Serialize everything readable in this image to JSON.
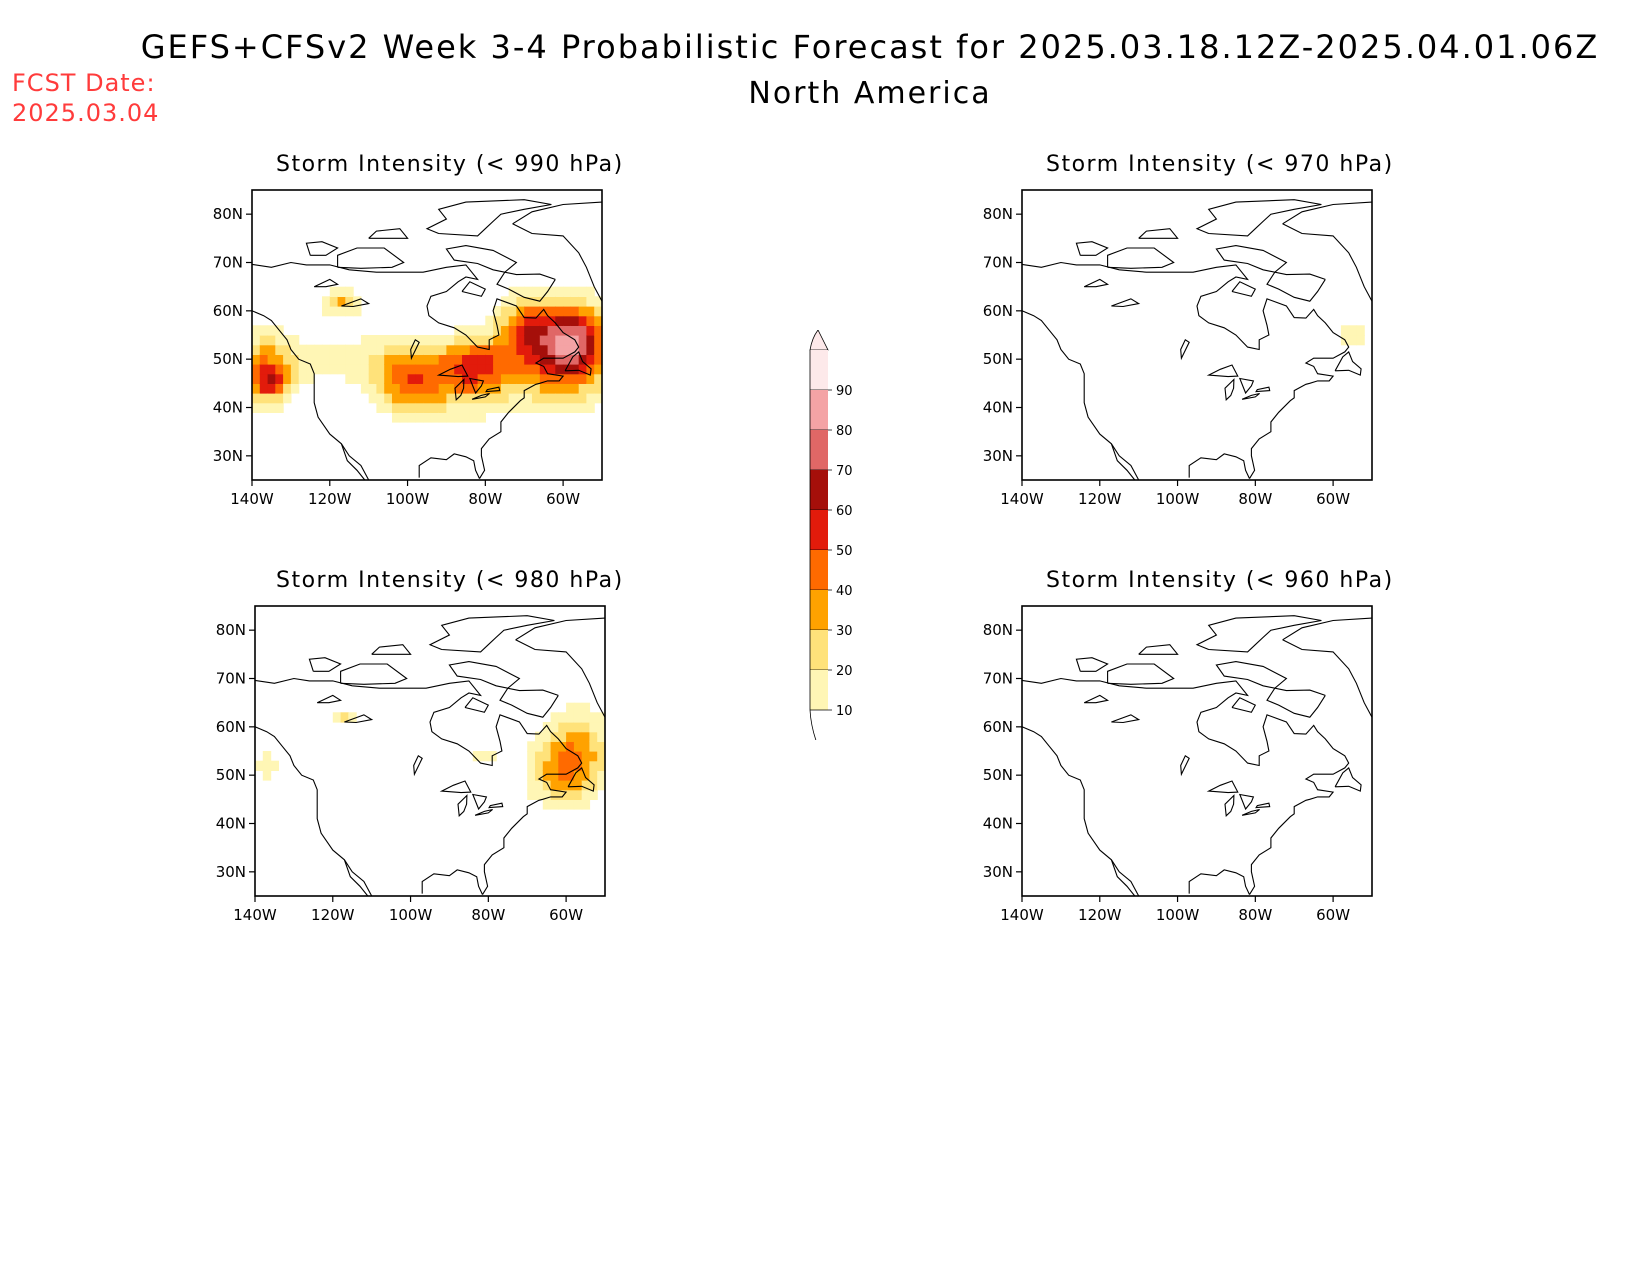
{
  "header": {
    "title": "GEFS+CFSv2 Week 3-4 Probabilistic Forecast for 2025.03.18.12Z-2025.04.01.06Z",
    "subtitle": "North America",
    "fcst_label": "FCST Date:",
    "fcst_date": "2025.03.04"
  },
  "panels": [
    {
      "id": "p990",
      "title": "Storm Intensity (< 990 hPa)"
    },
    {
      "id": "p970",
      "title": "Storm Intensity (< 970 hPa)"
    },
    {
      "id": "p980",
      "title": "Storm Intensity (< 980 hPa)"
    },
    {
      "id": "p960",
      "title": "Storm Intensity (< 960 hPa)"
    }
  ],
  "axes": {
    "lon_ticks": [
      "140W",
      "120W",
      "100W",
      "80W",
      "60W"
    ],
    "lat_ticks": [
      "80N",
      "70N",
      "60N",
      "50N",
      "40N",
      "30N"
    ],
    "lon_range": [
      -140,
      -50
    ],
    "lat_range": [
      25,
      85
    ]
  },
  "colorbar": {
    "labels": [
      "90",
      "80",
      "70",
      "60",
      "50",
      "40",
      "30",
      "20",
      "10"
    ],
    "colors": [
      "#fde9ea",
      "#f4a3a5",
      "#e06766",
      "#a50f0a",
      "#e21b0b",
      "#ff6a00",
      "#ffa200",
      "#ffe27a",
      "#fff6b5"
    ]
  }
}
